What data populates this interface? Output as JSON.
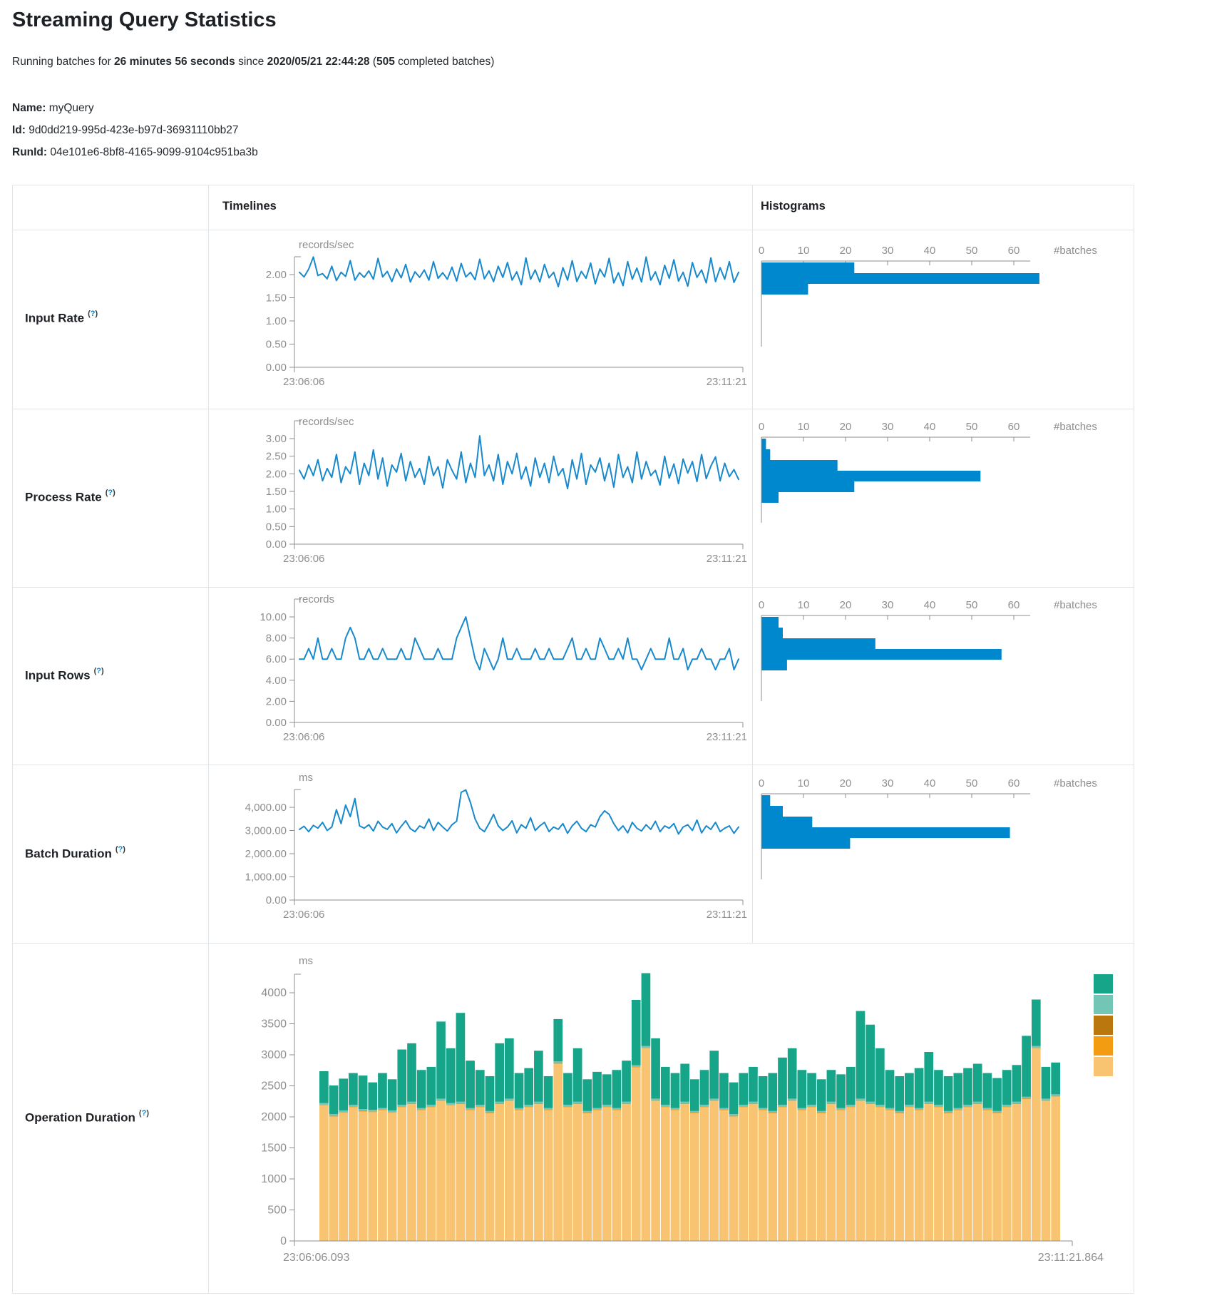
{
  "page": {
    "title": "Streaming Query Statistics",
    "subtitle": {
      "prefix": "Running batches for ",
      "duration": "26 minutes 56 seconds",
      "mid": " since ",
      "since": "2020/05/21 22:44:28",
      "paren": " (",
      "batches": "505",
      "suffix": " completed batches)"
    },
    "meta": {
      "name_label": "Name:",
      "name_value": " myQuery",
      "id_label": "Id:",
      "id_value": " 9d0dd219-995d-423e-b97d-36931110bb27",
      "runid_label": "RunId:",
      "runid_value": " 04e101e6-8bf8-4165-9099-9104c951ba3b"
    }
  },
  "table": {
    "headers": {
      "timelines": "Timelines",
      "histograms": "Histograms"
    }
  },
  "help": {
    "open": "(",
    "q": "?",
    "close": ")"
  },
  "colors": {
    "line_blue": "#1789cc",
    "bar_blue": "#0088ce",
    "axis_gray": "#8f8f8f",
    "text_gray": "#8e8e8e",
    "help_blue": "#0088ce",
    "border": "#e2e5e8"
  },
  "chart_data": [
    {
      "type": "line",
      "label": "Input Rate",
      "timeline": {
        "title": "Input Rate timeline",
        "unit": "records/sec",
        "yticks": [
          "2.00",
          "1.50",
          "1.00",
          "0.50",
          "0.00"
        ],
        "ytick_top_value": 2.0,
        "ylim": [
          0,
          2.45
        ],
        "x_start_label": "23:06:06",
        "x_end_label": "23:11:21",
        "values": [
          2.05,
          1.95,
          2.12,
          2.38,
          1.98,
          2.02,
          1.91,
          2.18,
          1.87,
          2.05,
          1.96,
          2.3,
          1.88,
          2.04,
          1.94,
          2.08,
          1.9,
          2.35,
          1.95,
          2.07,
          1.85,
          2.12,
          1.93,
          2.22,
          1.84,
          2.06,
          1.94,
          2.1,
          1.88,
          2.28,
          1.92,
          2.04,
          1.9,
          2.16,
          1.86,
          2.24,
          1.95,
          2.05,
          1.89,
          2.33,
          1.91,
          2.08,
          1.85,
          2.18,
          1.94,
          2.26,
          1.88,
          2.06,
          1.78,
          2.36,
          1.9,
          2.1,
          1.84,
          2.22,
          1.93,
          2.05,
          1.74,
          2.15,
          1.88,
          2.3,
          1.85,
          2.07,
          1.92,
          2.25,
          1.8,
          2.12,
          1.95,
          2.35,
          1.82,
          2.04,
          1.76,
          2.28,
          1.9,
          2.14,
          1.84,
          2.38,
          1.88,
          2.06,
          1.78,
          2.2,
          1.92,
          2.32,
          1.86,
          2.05,
          1.75,
          2.26,
          1.94,
          2.1,
          1.82,
          2.36,
          1.85,
          2.15,
          1.9,
          2.28,
          1.83,
          2.05
        ]
      },
      "histogram": {
        "title": "Input Rate histogram",
        "xticks": [
          "0",
          "10",
          "20",
          "30",
          "40",
          "50",
          "60"
        ],
        "unit": "#batches",
        "bar_values": [
          22,
          66,
          11
        ]
      }
    },
    {
      "type": "line",
      "label": "Process Rate",
      "timeline": {
        "title": "Process Rate timeline",
        "unit": "records/sec",
        "yticks": [
          "3.00",
          "2.50",
          "2.00",
          "1.50",
          "1.00",
          "0.50",
          "0.00"
        ],
        "ytick_top_value": 3.0,
        "ylim": [
          0,
          3.15
        ],
        "x_start_label": "23:06:06",
        "x_end_label": "23:11:21",
        "values": [
          2.1,
          1.85,
          2.25,
          1.95,
          2.4,
          1.8,
          2.15,
          1.9,
          2.55,
          1.75,
          2.2,
          2.0,
          2.62,
          1.7,
          2.3,
          1.95,
          2.68,
          1.85,
          2.45,
          1.65,
          2.25,
          2.05,
          2.58,
          1.8,
          2.35,
          1.9,
          2.15,
          1.7,
          2.5,
          1.95,
          2.2,
          1.6,
          2.4,
          2.1,
          1.85,
          2.62,
          1.75,
          2.3,
          1.9,
          3.08,
          1.95,
          2.25,
          1.8,
          2.55,
          1.7,
          2.35,
          2.0,
          2.58,
          1.85,
          2.2,
          1.65,
          2.45,
          1.9,
          2.3,
          1.75,
          2.5,
          1.95,
          2.15,
          1.58,
          2.4,
          1.85,
          2.58,
          1.7,
          2.25,
          2.05,
          2.45,
          1.8,
          2.3,
          1.62,
          2.55,
          1.9,
          2.2,
          1.75,
          2.62,
          1.85,
          2.35,
          1.95,
          2.1,
          1.68,
          2.5,
          1.88,
          2.28,
          1.72,
          2.42,
          2.02,
          2.35,
          1.78,
          2.55,
          1.86,
          2.22,
          2.48,
          1.8,
          2.3,
          1.92,
          2.12,
          1.84
        ]
      },
      "histogram": {
        "title": "Process Rate histogram",
        "xticks": [
          "0",
          "10",
          "20",
          "30",
          "40",
          "50",
          "60"
        ],
        "unit": "#batches",
        "bar_values": [
          1,
          2,
          18,
          52,
          22,
          4
        ]
      }
    },
    {
      "type": "line",
      "label": "Input Rows",
      "timeline": {
        "title": "Input Rows timeline",
        "unit": "records",
        "yticks": [
          "10.00",
          "8.00",
          "6.00",
          "4.00",
          "2.00",
          "0.00"
        ],
        "ytick_top_value": 10,
        "ylim": [
          0,
          10.2
        ],
        "x_start_label": "23:06:06",
        "x_end_label": "23:11:21",
        "values": [
          6,
          6,
          7,
          6,
          8,
          6,
          6,
          7,
          6,
          6,
          8,
          9,
          8,
          6,
          6,
          7,
          6,
          6,
          7,
          6,
          6,
          6,
          7,
          6,
          6,
          8,
          7,
          6,
          6,
          6,
          7,
          6,
          6,
          6,
          8,
          9,
          10,
          8,
          6,
          5,
          7,
          6,
          5,
          6,
          8,
          6,
          6,
          7,
          6,
          6,
          6,
          7,
          6,
          6,
          7,
          6,
          6,
          6,
          7,
          8,
          6,
          6,
          7,
          6,
          6,
          8,
          7,
          6,
          6,
          7,
          6,
          8,
          6,
          6,
          5,
          6,
          7,
          6,
          6,
          6,
          8,
          6,
          6,
          7,
          5,
          6,
          6,
          7,
          6,
          6,
          5,
          6,
          6,
          7,
          5,
          6
        ]
      },
      "histogram": {
        "title": "Input Rows histogram",
        "xticks": [
          "0",
          "10",
          "20",
          "30",
          "40",
          "50",
          "60"
        ],
        "unit": "#batches",
        "bar_values": [
          4,
          5,
          27,
          57,
          6
        ]
      }
    },
    {
      "type": "line",
      "label": "Batch Duration",
      "timeline": {
        "title": "Batch Duration timeline",
        "unit": "ms",
        "yticks": [
          "4,000.00",
          "3,000.00",
          "2,000.00",
          "1,000.00",
          "0.00"
        ],
        "ytick_top_value": 4000,
        "ylim": [
          0,
          4800
        ],
        "x_start_label": "23:06:06",
        "x_end_label": "23:11:21",
        "values": [
          3050,
          3180,
          2950,
          3220,
          3100,
          3350,
          3000,
          3150,
          3900,
          3300,
          4100,
          3600,
          4380,
          3200,
          3100,
          3250,
          2980,
          3400,
          3150,
          3050,
          3300,
          2900,
          3180,
          3420,
          3080,
          2950,
          3200,
          3100,
          3500,
          3000,
          3350,
          3150,
          2980,
          3250,
          3400,
          4650,
          4750,
          4200,
          3500,
          3100,
          2950,
          3300,
          3700,
          3200,
          3000,
          3150,
          3420,
          2900,
          3250,
          3100,
          3550,
          3000,
          3200,
          3350,
          2950,
          3150,
          3050,
          3300,
          2880,
          3200,
          3400,
          3100,
          2950,
          3250,
          3150,
          3600,
          3850,
          3700,
          3300,
          3000,
          3200,
          2900,
          3350,
          3100,
          2980,
          3250,
          3050,
          3400,
          2950,
          3200,
          3100,
          3300,
          2850,
          3150,
          3250,
          3000,
          3450,
          2900,
          3200,
          3050,
          3350,
          2950,
          3100,
          3200,
          2880,
          3150
        ]
      },
      "histogram": {
        "title": "Batch Duration histogram",
        "xticks": [
          "0",
          "10",
          "20",
          "30",
          "40",
          "50",
          "60"
        ],
        "unit": "#batches",
        "bar_values": [
          2,
          5,
          12,
          59,
          21
        ]
      }
    },
    {
      "type": "bar",
      "label": "Operation Duration",
      "unit": "ms",
      "yticks": [
        "4000",
        "3500",
        "3000",
        "2500",
        "2000",
        "1500",
        "1000",
        "500",
        "0"
      ],
      "ytick_top_value": 4000,
      "ylim": [
        0,
        4500
      ],
      "x_start_label": "23:06:06.093",
      "x_end_label": "23:11:21.864",
      "legend_colors": [
        "#17A589",
        "#73C6B6",
        "#B9770E",
        "#F39C12",
        "#F8C471"
      ],
      "stack_colors_bottom_to_top": [
        "#F8C471",
        "#F39C12",
        "#B9770E",
        "#73C6B6",
        "#17A589"
      ],
      "fixed_middle_heights": [
        8,
        4,
        26
      ],
      "bars_bottom_and_total": [
        [
          2180,
          2730
        ],
        [
          2000,
          2500
        ],
        [
          2060,
          2610
        ],
        [
          2150,
          2700
        ],
        [
          2080,
          2660
        ],
        [
          2070,
          2550
        ],
        [
          2100,
          2700
        ],
        [
          2060,
          2600
        ],
        [
          2150,
          3080
        ],
        [
          2200,
          3180
        ],
        [
          2100,
          2750
        ],
        [
          2150,
          2800
        ],
        [
          2250,
          3530
        ],
        [
          2180,
          3100
        ],
        [
          2200,
          3670
        ],
        [
          2100,
          2900
        ],
        [
          2150,
          2750
        ],
        [
          2050,
          2650
        ],
        [
          2200,
          3180
        ],
        [
          2250,
          3260
        ],
        [
          2100,
          2700
        ],
        [
          2150,
          2780
        ],
        [
          2200,
          3060
        ],
        [
          2100,
          2650
        ],
        [
          2850,
          3570
        ],
        [
          2150,
          2700
        ],
        [
          2200,
          3100
        ],
        [
          2050,
          2600
        ],
        [
          2100,
          2720
        ],
        [
          2150,
          2680
        ],
        [
          2100,
          2750
        ],
        [
          2200,
          2900
        ],
        [
          2790,
          3880
        ],
        [
          3100,
          4310
        ],
        [
          2250,
          3260
        ],
        [
          2150,
          2800
        ],
        [
          2100,
          2700
        ],
        [
          2200,
          2850
        ],
        [
          2050,
          2600
        ],
        [
          2150,
          2750
        ],
        [
          2250,
          3060
        ],
        [
          2100,
          2700
        ],
        [
          2000,
          2550
        ],
        [
          2150,
          2700
        ],
        [
          2200,
          2800
        ],
        [
          2100,
          2650
        ],
        [
          2050,
          2700
        ],
        [
          2150,
          2950
        ],
        [
          2250,
          3100
        ],
        [
          2100,
          2750
        ],
        [
          2150,
          2700
        ],
        [
          2050,
          2600
        ],
        [
          2200,
          2750
        ],
        [
          2100,
          2680
        ],
        [
          2150,
          2800
        ],
        [
          2250,
          3700
        ],
        [
          2200,
          3480
        ],
        [
          2150,
          3100
        ],
        [
          2100,
          2750
        ],
        [
          2050,
          2650
        ],
        [
          2150,
          2700
        ],
        [
          2100,
          2780
        ],
        [
          2200,
          3040
        ],
        [
          2150,
          2750
        ],
        [
          2050,
          2650
        ],
        [
          2100,
          2700
        ],
        [
          2150,
          2780
        ],
        [
          2200,
          2850
        ],
        [
          2100,
          2700
        ],
        [
          2050,
          2620
        ],
        [
          2150,
          2750
        ],
        [
          2200,
          2830
        ],
        [
          2280,
          3300
        ],
        [
          3100,
          3885
        ],
        [
          2250,
          2800
        ],
        [
          2320,
          2870
        ]
      ]
    }
  ]
}
